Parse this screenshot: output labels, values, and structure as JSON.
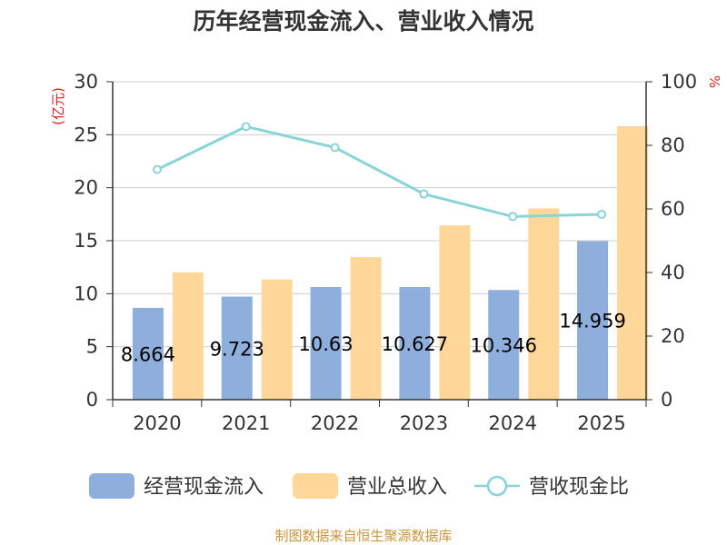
{
  "chart_data": {
    "type": "bar",
    "title": "历年经营现金流入、营业收入情况",
    "categories": [
      "2020",
      "2021",
      "2022",
      "2023",
      "2024",
      "2025"
    ],
    "series": [
      {
        "name": "经营现金流入",
        "type": "bar",
        "axis": "left",
        "values": [
          8.664,
          9.723,
          10.63,
          10.627,
          10.346,
          14.959
        ],
        "labels": [
          "8.664",
          "9.723",
          "10.63",
          "10.627",
          "10.346",
          "14.959"
        ],
        "color": "#8eaedb"
      },
      {
        "name": "营业总收入",
        "type": "bar",
        "axis": "left",
        "values": [
          12.0,
          11.35,
          13.45,
          16.45,
          18.05,
          25.8
        ],
        "color": "#ffd899"
      },
      {
        "name": "营收现金比",
        "type": "line",
        "axis": "right",
        "values": [
          72.4,
          85.9,
          79.3,
          64.7,
          57.6,
          58.3
        ],
        "color": "#88d4d8"
      }
    ],
    "y_left": {
      "label": "(亿元)",
      "min": 0,
      "max": 30,
      "ticks": [
        "0",
        "5",
        "10",
        "15",
        "20",
        "25",
        "30"
      ]
    },
    "y_right": {
      "label": "%",
      "min": 0,
      "max": 100,
      "ticks": [
        "0",
        "20",
        "40",
        "60",
        "80",
        "100"
      ]
    },
    "grid": true,
    "legend_position": "bottom"
  },
  "source": "制图数据来自恒生聚源数据库"
}
